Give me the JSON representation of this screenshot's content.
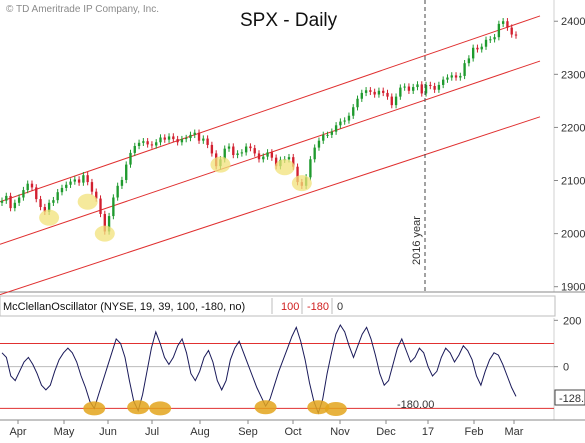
{
  "copyright": "© TD Ameritrade IP Company, Inc.",
  "chart_data": [
    {
      "type": "candlestick",
      "title": "SPX - Daily",
      "annotation": "2016 year",
      "ylim": [
        1890,
        2440
      ],
      "yticks": [
        1900,
        2000,
        2100,
        2200,
        2300,
        2400
      ],
      "x_months": [
        "Apr",
        "May",
        "Jun",
        "Jul",
        "Aug",
        "Sep",
        "Oct",
        "Nov",
        "Dec",
        "17",
        "Feb",
        "Mar"
      ],
      "closes": [
        2062,
        2071,
        2048,
        2058,
        2068,
        2082,
        2094,
        2087,
        2065,
        2050,
        2041,
        2058,
        2063,
        2078,
        2086,
        2092,
        2098,
        2102,
        2096,
        2110,
        2097,
        2079,
        2066,
        2037,
        2004,
        2033,
        2068,
        2090,
        2101,
        2130,
        2152,
        2165,
        2171,
        2174,
        2168,
        2166,
        2172,
        2181,
        2177,
        2183,
        2178,
        2172,
        2178,
        2180,
        2186,
        2190,
        2175,
        2179,
        2167,
        2151,
        2127,
        2140,
        2160,
        2164,
        2148,
        2151,
        2153,
        2164,
        2161,
        2151,
        2140,
        2145,
        2153,
        2143,
        2127,
        2139,
        2140,
        2144,
        2126,
        2097,
        2090,
        2106,
        2140,
        2162,
        2175,
        2186,
        2186,
        2192,
        2204,
        2211,
        2213,
        2222,
        2238,
        2254,
        2265,
        2270,
        2267,
        2262,
        2269,
        2265,
        2258,
        2242,
        2258,
        2275,
        2277,
        2269,
        2276,
        2281,
        2264,
        2280,
        2278,
        2271,
        2280,
        2290,
        2294,
        2298,
        2294,
        2297,
        2321,
        2330,
        2350,
        2347,
        2352,
        2365,
        2366,
        2370,
        2395,
        2400,
        2388,
        2375,
        2373
      ],
      "channel": {
        "upper": [
          [
            2060,
            2410
          ]
        ],
        "middle": [
          [
            1980,
            2325
          ]
        ],
        "lower": [
          [
            1885,
            2220
          ]
        ]
      },
      "highlighted_lows": [
        2030,
        2060,
        2000,
        2130,
        2125,
        2095
      ],
      "vertical_marker_month": "17"
    },
    {
      "type": "line",
      "legend": {
        "name": "McClellanOscillator (NYSE, 19, 39, 100, -180, no)",
        "level_upper": "100",
        "level_lower": "-180",
        "zero": "0"
      },
      "ylim": [
        -230,
        210
      ],
      "yticks": [
        "200",
        "0"
      ],
      "levels": [
        100,
        -180
      ],
      "level_label": "-180.00",
      "last_value_label": "-128.",
      "values": [
        60,
        40,
        -40,
        -60,
        -20,
        20,
        40,
        10,
        -30,
        -80,
        -100,
        -80,
        -20,
        30,
        60,
        80,
        60,
        20,
        -40,
        -90,
        -150,
        -180,
        -120,
        -60,
        0,
        60,
        120,
        100,
        40,
        -60,
        -150,
        -190,
        -120,
        -20,
        80,
        150,
        100,
        40,
        10,
        40,
        90,
        120,
        60,
        -30,
        -60,
        -20,
        40,
        70,
        20,
        -60,
        -100,
        -60,
        30,
        80,
        110,
        60,
        10,
        -40,
        -90,
        -130,
        -170,
        -140,
        -80,
        -20,
        30,
        80,
        130,
        170,
        110,
        30,
        -70,
        -150,
        -200,
        -140,
        -30,
        60,
        140,
        180,
        150,
        90,
        40,
        90,
        140,
        170,
        120,
        50,
        -30,
        -80,
        -60,
        10,
        80,
        120,
        70,
        20,
        40,
        80,
        60,
        0,
        -40,
        -20,
        40,
        80,
        60,
        20,
        50,
        90,
        70,
        30,
        -40,
        -80,
        -20,
        30,
        60,
        50,
        10,
        -40,
        -90,
        -128
      ],
      "highlighted_lows": [
        -180,
        -175,
        -180,
        -175,
        -175,
        -200
      ]
    }
  ]
}
